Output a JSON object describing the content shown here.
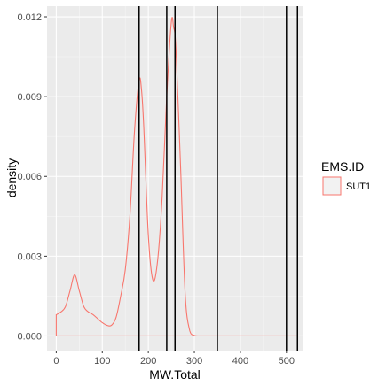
{
  "chart_data": {
    "type": "area",
    "xlabel": "MW.Total",
    "ylabel": "density",
    "xlim": [
      -20,
      537
    ],
    "ylim": [
      -0.00055,
      0.0124
    ],
    "x_ticks": [
      0,
      100,
      200,
      300,
      400,
      500
    ],
    "x_tick_labels": [
      "0",
      "100",
      "200",
      "300",
      "400",
      "500"
    ],
    "y_ticks": [
      0.0,
      0.003,
      0.006,
      0.009,
      0.012
    ],
    "y_tick_labels": [
      "0.000",
      "0.003",
      "0.006",
      "0.009",
      "0.012"
    ],
    "grid": true,
    "legend": {
      "title": "EMS.ID",
      "position": "right",
      "entries": [
        "SUT1"
      ]
    },
    "series": [
      {
        "name": "SUT1",
        "color": "#F8766D",
        "x": [
          0,
          10,
          20,
          30,
          40,
          50,
          60,
          70,
          80,
          90,
          100,
          110,
          120,
          130,
          140,
          150,
          160,
          170,
          180,
          185,
          190,
          200,
          210,
          220,
          230,
          240,
          250,
          255,
          260,
          270,
          280,
          290,
          300,
          310,
          320,
          350,
          400,
          450,
          500,
          524
        ],
        "y": [
          0.0008,
          0.0009,
          0.0011,
          0.0017,
          0.0023,
          0.0017,
          0.0011,
          0.0009,
          0.0008,
          0.00065,
          0.0005,
          0.0004,
          0.0004,
          0.0007,
          0.0015,
          0.0025,
          0.0045,
          0.0077,
          0.0096,
          0.0093,
          0.0079,
          0.0038,
          0.0021,
          0.0028,
          0.0052,
          0.009,
          0.0118,
          0.0116,
          0.0108,
          0.0064,
          0.0016,
          0.0002,
          2e-05,
          0.0,
          0.0,
          0.0,
          0.0,
          0.0,
          0.0,
          0.0
        ]
      }
    ],
    "vertical_lines": [
      180,
      240,
      258,
      350,
      500,
      524
    ]
  }
}
